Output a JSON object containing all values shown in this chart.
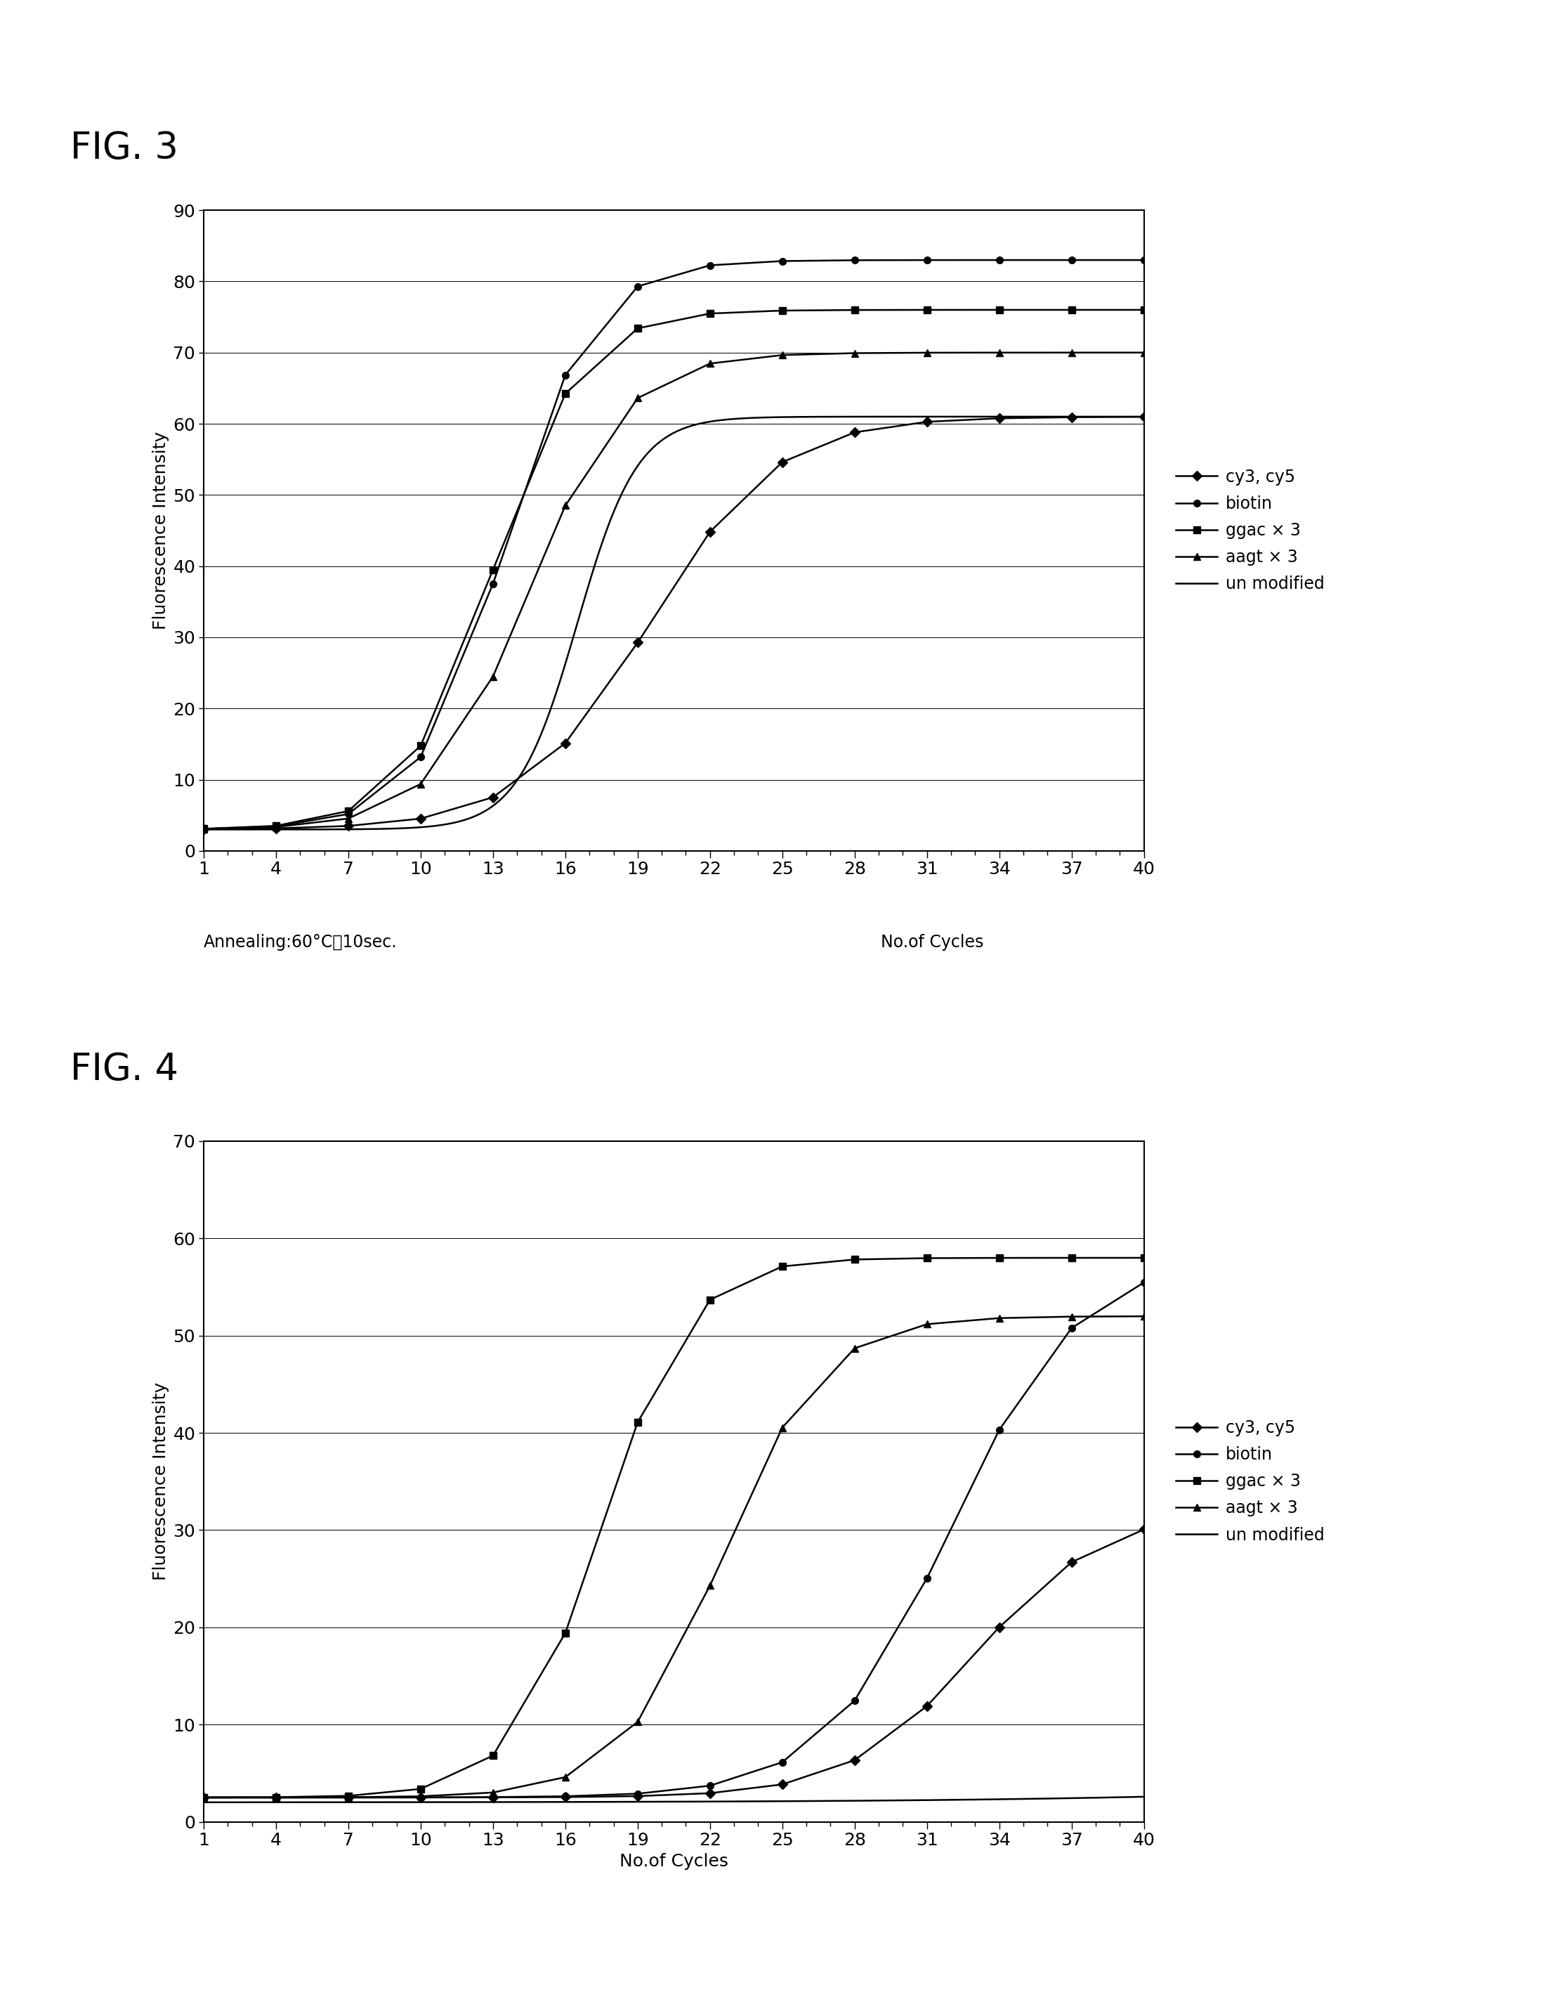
{
  "fig3_title": "FIG. 3",
  "fig4_title": "FIG. 4",
  "x_ticks": [
    1,
    4,
    7,
    10,
    13,
    16,
    19,
    22,
    25,
    28,
    31,
    34,
    37,
    40
  ],
  "fig3": {
    "ylim": [
      0,
      90
    ],
    "yticks": [
      0,
      10,
      20,
      30,
      40,
      50,
      60,
      70,
      80,
      90
    ],
    "ylabel": "Fluorescence Intensity",
    "xlabel_left": "Annealing:60°C、10sec.",
    "xlabel_right": "No.of Cycles",
    "series": {
      "cy3_cy5": {
        "label": "cy3, cy5",
        "marker": "D",
        "plateau": 61,
        "midpoint": 19.5,
        "steepness": 0.38,
        "baseline": 3.0
      },
      "biotin": {
        "label": "biotin",
        "marker": "o",
        "plateau": 83,
        "midpoint": 13.5,
        "steepness": 0.55,
        "baseline": 3.0
      },
      "ggac": {
        "label": "ggac × 3",
        "marker": "s",
        "plateau": 76,
        "midpoint": 13.0,
        "steepness": 0.55,
        "baseline": 3.0
      },
      "aagt": {
        "label": "aagt × 3",
        "marker": "^",
        "plateau": 70,
        "midpoint": 14.5,
        "steepness": 0.5,
        "baseline": 3.0
      },
      "unmodified": {
        "label": "un modified",
        "marker": null,
        "plateau": 61,
        "midpoint": 16.5,
        "steepness": 0.8,
        "baseline": 3.0
      }
    }
  },
  "fig4": {
    "ylim": [
      0,
      70
    ],
    "yticks": [
      0,
      10,
      20,
      30,
      40,
      50,
      60,
      70
    ],
    "ylabel": "Fluorescence Intensity",
    "xlabel": "No.of Cycles",
    "series": {
      "cy3_cy5": {
        "label": "cy3, cy5",
        "marker": "D",
        "plateau": 32,
        "midpoint": 33,
        "steepness": 0.38,
        "baseline": 2.5
      },
      "biotin": {
        "label": "biotin",
        "marker": "o",
        "plateau": 58,
        "midpoint": 32,
        "steepness": 0.38,
        "baseline": 2.5
      },
      "ggac": {
        "label": "ggac × 3",
        "marker": "s",
        "plateau": 58,
        "midpoint": 17.5,
        "steepness": 0.55,
        "baseline": 2.5
      },
      "aagt": {
        "label": "aagt × 3",
        "marker": "^",
        "plateau": 52,
        "midpoint": 22.5,
        "steepness": 0.48,
        "baseline": 2.5
      },
      "unmodified": {
        "label": "un modified",
        "marker": null,
        "plateau": 4.5,
        "midpoint": 50,
        "steepness": 0.12,
        "baseline": 2.0
      }
    }
  },
  "background_color": "#ffffff",
  "font_size": 18,
  "title_font_size": 38,
  "marker_size": 7,
  "linewidth": 1.8
}
